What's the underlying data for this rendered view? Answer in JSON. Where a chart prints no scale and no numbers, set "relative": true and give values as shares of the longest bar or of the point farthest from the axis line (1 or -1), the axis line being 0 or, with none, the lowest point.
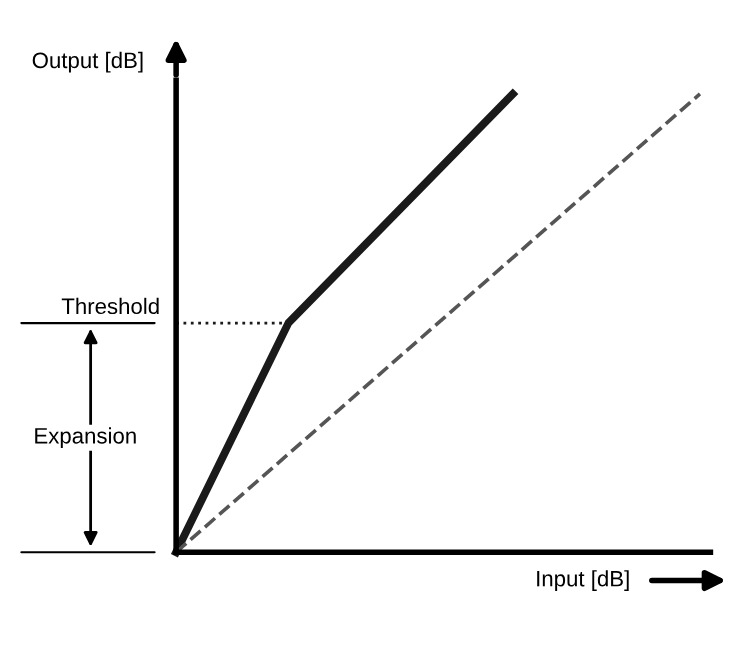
{
  "chart_data": {
    "type": "line",
    "relative": true,
    "xlabel": "Input [dB]",
    "ylabel": "Output [dB]",
    "categories": [
      null,
      null,
      null,
      null,
      null,
      null,
      null,
      null,
      null,
      null,
      null,
      null,
      null,
      null,
      null
    ],
    "series": [
      {
        "color": "#1a1a1a",
        "values": [
          0,
          null,
          null,
          0.5,
          null,
          null,
          null,
          null,
          null,
          1,
          null,
          null,
          null,
          null,
          null
        ],
        "line_style": "solid"
      },
      {
        "color": "#555555",
        "values": [
          0,
          null,
          null,
          null,
          null,
          null,
          null,
          null,
          null,
          null,
          null,
          null,
          null,
          null,
          1
        ],
        "line_style": "dashed"
      }
    ],
    "ref_lines": [
      {
        "axis": "y",
        "value": 0.5,
        "label": "Threshold",
        "line_style": "dotted",
        "color": "#1a1a1a"
      }
    ],
    "annotations": [
      "Expansion"
    ],
    "grid": false,
    "legend": false,
    "marker": "none"
  }
}
